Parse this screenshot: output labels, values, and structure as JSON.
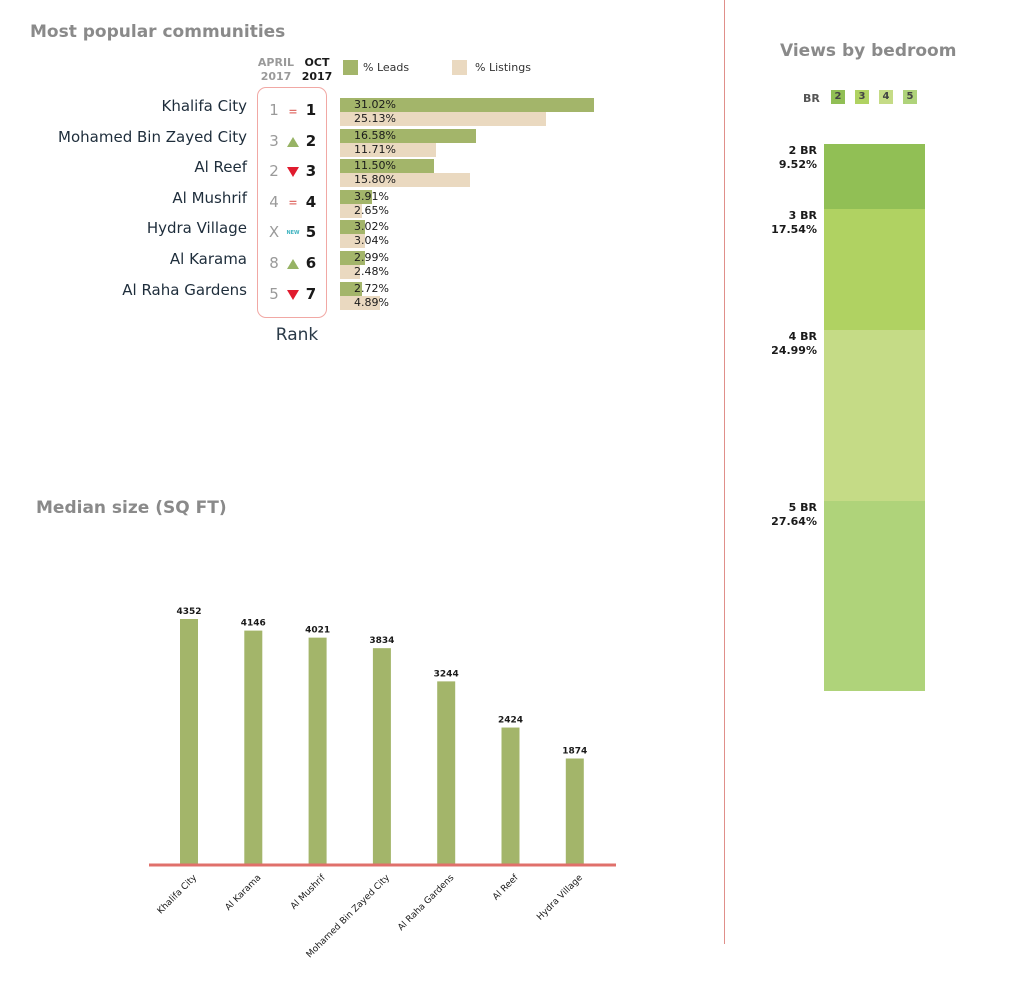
{
  "popular": {
    "title": "Most popular communities",
    "col_april": [
      "APRIL",
      "2017"
    ],
    "col_oct": [
      "OCT",
      "2017"
    ],
    "legend_leads": "% Leads",
    "legend_listings": "% Listings",
    "rank_label": "Rank",
    "colors": {
      "leads": "#a3b56a",
      "listings": "#ead9c0",
      "up": "#97b365",
      "down": "#e01b2e",
      "equal": "#e0706b",
      "new": "#3fb3c0"
    },
    "rows": [
      {
        "name": "Khalifa City",
        "april": "1",
        "oct": "1",
        "change": "equal",
        "change_text": "=",
        "leads": 31.02,
        "leads_label": "31.02%",
        "listings": 25.13,
        "listings_label": "25.13%"
      },
      {
        "name": "Mohamed Bin Zayed City",
        "april": "3",
        "oct": "2",
        "change": "up",
        "change_text": "",
        "leads": 16.58,
        "leads_label": "16.58%",
        "listings": 11.71,
        "listings_label": "11.71%"
      },
      {
        "name": "Al Reef",
        "april": "2",
        "oct": "3",
        "change": "down",
        "change_text": "",
        "leads": 11.5,
        "leads_label": "11.50%",
        "listings": 15.8,
        "listings_label": "15.80%"
      },
      {
        "name": "Al Mushrif",
        "april": "4",
        "oct": "4",
        "change": "equal",
        "change_text": "=",
        "leads": 3.91,
        "leads_label": "3.91%",
        "listings": 2.65,
        "listings_label": "2.65%"
      },
      {
        "name": "Hydra Village",
        "april": "X",
        "oct": "5",
        "change": "new",
        "change_text": "NEW",
        "leads": 3.02,
        "leads_label": "3.02%",
        "listings": 3.04,
        "listings_label": "3.04%"
      },
      {
        "name": "Al Karama",
        "april": "8",
        "oct": "6",
        "change": "up",
        "change_text": "",
        "leads": 2.99,
        "leads_label": "2.99%",
        "listings": 2.48,
        "listings_label": "2.48%"
      },
      {
        "name": "Al Raha Gardens",
        "april": "5",
        "oct": "7",
        "change": "down",
        "change_text": "",
        "leads": 2.72,
        "leads_label": "2.72%",
        "listings": 4.89,
        "listings_label": "4.89%"
      }
    ]
  },
  "bedroom": {
    "title": "Views by bedroom",
    "legend_label": "BR",
    "legend": [
      {
        "label": "2",
        "color": "#91bf55"
      },
      {
        "label": "3",
        "color": "#b0d262"
      },
      {
        "label": "4",
        "color": "#c5db86"
      },
      {
        "label": "5",
        "color": "#afd37a"
      }
    ],
    "segments": [
      {
        "name": "2 BR",
        "pct_label": "9.52%",
        "value": 9.52,
        "color": "#91bf55"
      },
      {
        "name": "3 BR",
        "pct_label": "17.54%",
        "value": 17.54,
        "color": "#b0d262"
      },
      {
        "name": "4 BR",
        "pct_label": "24.99%",
        "value": 24.99,
        "color": "#c5db86"
      },
      {
        "name": "5 BR",
        "pct_label": "27.64%",
        "value": 27.64,
        "color": "#afd37a"
      }
    ]
  },
  "median": {
    "title": "Median size (SQ FT)"
  },
  "chart_data": [
    {
      "type": "bar",
      "title": "Most popular communities",
      "categories": [
        "Khalifa City",
        "Mohamed Bin Zayed City",
        "Al Reef",
        "Al Mushrif",
        "Hydra Village",
        "Al Karama",
        "Al Raha Gardens"
      ],
      "series": [
        {
          "name": "% Leads",
          "values": [
            31.02,
            16.58,
            11.5,
            3.91,
            3.02,
            2.99,
            2.72
          ]
        },
        {
          "name": "% Listings",
          "values": [
            25.13,
            11.71,
            15.8,
            2.65,
            3.04,
            2.48,
            4.89
          ]
        }
      ],
      "orientation": "horizontal"
    },
    {
      "type": "bar",
      "title": "Views by bedroom",
      "categories": [
        "2 BR",
        "3 BR",
        "4 BR",
        "5 BR"
      ],
      "values": [
        9.52,
        17.54,
        24.99,
        27.64
      ],
      "stacked": true
    },
    {
      "type": "bar",
      "title": "Median size (SQ FT)",
      "categories": [
        "Khalifa City",
        "Al Karama",
        "Al Mushrif",
        "Mohamed Bin Zayed City",
        "Al Raha Gardens",
        "Al Reef",
        "Hydra Village"
      ],
      "values": [
        4352,
        4146,
        4021,
        3834,
        3244,
        2424,
        1874
      ],
      "value_labels": [
        "4352",
        "4146",
        "4021",
        "3834",
        "3244",
        "2424",
        "1874"
      ],
      "color": "#a3b56a",
      "axis_color": "#e0706b"
    }
  ]
}
